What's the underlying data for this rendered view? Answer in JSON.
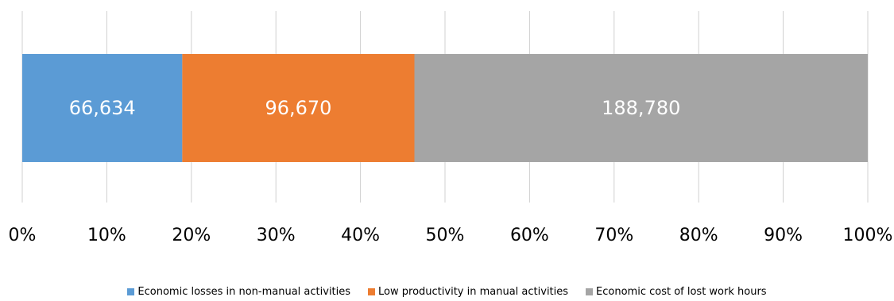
{
  "chart_data": {
    "type": "bar",
    "orientation": "horizontal",
    "stacked": "percent",
    "categories": [
      ""
    ],
    "series": [
      {
        "name": "Economic losses in non-manual activities",
        "values": [
          66634
        ],
        "label": "66,634",
        "color": "#5B9BD5"
      },
      {
        "name": "Low productivity in manual activities",
        "values": [
          96670
        ],
        "label": "96,670",
        "color": "#ED7D31"
      },
      {
        "name": "Economic cost of lost work hours",
        "values": [
          188780
        ],
        "label": "188,780",
        "color": "#A5A5A5"
      }
    ],
    "xlim": [
      0,
      100
    ],
    "x_ticks": [
      "0%",
      "10%",
      "20%",
      "30%",
      "40%",
      "50%",
      "60%",
      "70%",
      "80%",
      "90%",
      "100%"
    ],
    "grid": "vertical",
    "legend_position": "bottom",
    "title": "",
    "xlabel": "",
    "ylabel": ""
  }
}
